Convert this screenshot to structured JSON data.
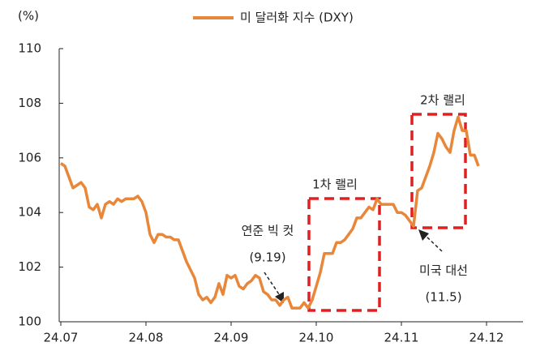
{
  "chart_data": {
    "type": "line",
    "y_unit": "(%)",
    "categories": [
      "24.07",
      null,
      null,
      null,
      null,
      null,
      null,
      null,
      null,
      null,
      null,
      null,
      null,
      null,
      null,
      null,
      null,
      null,
      null,
      null,
      null,
      "24.08",
      null,
      null,
      null,
      null,
      null,
      null,
      null,
      null,
      null,
      null,
      null,
      null,
      null,
      null,
      null,
      null,
      null,
      null,
      null,
      null,
      "24.09",
      null,
      null,
      null,
      null,
      null,
      null,
      null,
      null,
      null,
      null,
      null,
      null,
      null,
      null,
      null,
      null,
      null,
      null,
      null,
      null,
      "24.10",
      null,
      null,
      null,
      null,
      null,
      null,
      null,
      null,
      null,
      null,
      null,
      null,
      null,
      null,
      null,
      null,
      null,
      null,
      null,
      null,
      "24.11",
      null,
      null,
      null,
      null,
      null,
      null,
      null,
      null,
      null,
      null,
      null,
      null,
      null,
      null,
      null,
      null,
      null,
      null,
      null,
      null,
      "24.12"
    ],
    "series": [
      {
        "name": "미 달러화 지수 (DXY)",
        "color": "#e8873a",
        "values": [
          105.8,
          105.7,
          105.3,
          104.9,
          105.0,
          105.1,
          104.9,
          104.2,
          104.1,
          104.3,
          103.8,
          104.3,
          104.4,
          104.3,
          104.5,
          104.4,
          104.5,
          104.5,
          104.5,
          104.6,
          104.4,
          104.0,
          103.2,
          102.9,
          103.2,
          103.2,
          103.1,
          103.1,
          103.0,
          103.0,
          102.6,
          102.2,
          101.9,
          101.6,
          101.0,
          100.8,
          100.9,
          100.7,
          100.9,
          101.4,
          101.0,
          101.7,
          101.6,
          101.7,
          101.3,
          101.2,
          101.4,
          101.5,
          101.7,
          101.6,
          101.1,
          101.0,
          100.8,
          100.8,
          100.6,
          100.8,
          100.9,
          100.5,
          100.5,
          100.5,
          100.7,
          100.5,
          100.8,
          101.3,
          101.8,
          102.5,
          102.5,
          102.5,
          102.9,
          102.9,
          103.0,
          103.2,
          103.4,
          103.8,
          103.8,
          104.0,
          104.2,
          104.1,
          104.5,
          104.3,
          104.3,
          104.3,
          104.3,
          104.0,
          104.0,
          103.9,
          103.7,
          103.5,
          104.8,
          104.9,
          105.3,
          105.7,
          106.2,
          106.9,
          106.7,
          106.4,
          106.2,
          107.0,
          107.5,
          107.0,
          107.0,
          106.1,
          106.1,
          105.7,
          null,
          null
        ]
      }
    ],
    "ylim": [
      100,
      110
    ],
    "yticks": [
      100,
      102,
      104,
      106,
      108,
      110
    ],
    "annotations": [
      "연준 빅 컷",
      "(9.19)",
      "1차 랠리",
      "2차 랠리",
      "미국 대선",
      "(11.5)"
    ]
  }
}
